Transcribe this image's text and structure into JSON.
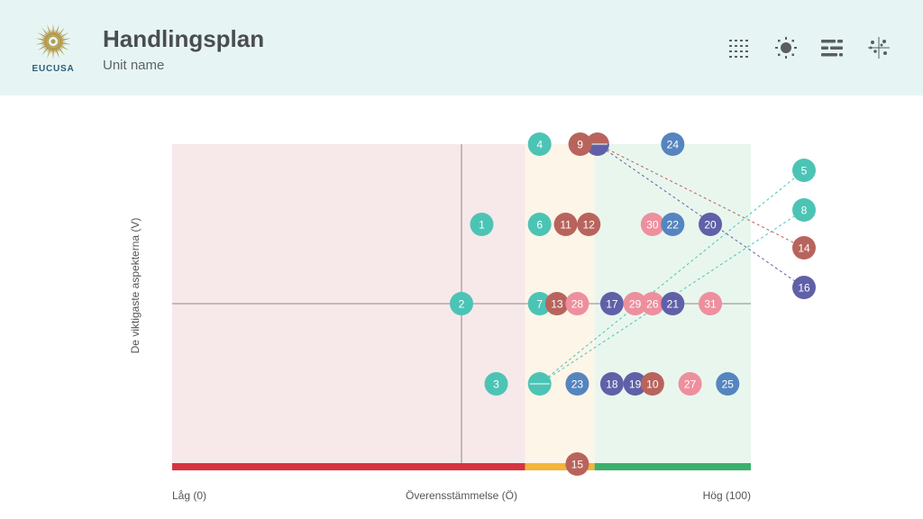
{
  "header": {
    "logo_text": "EUCUSA",
    "title": "Handlingsplan",
    "subtitle": "Unit name",
    "tools": [
      {
        "icon": "dot-grid-icon"
      },
      {
        "icon": "sun-icon"
      },
      {
        "icon": "bars-icon"
      },
      {
        "icon": "scatter-icon"
      }
    ]
  },
  "chart_data": {
    "type": "scatter",
    "title": "",
    "xlabel": "Överensstämmelse (Ö)",
    "x_min_label": "Låg (0)",
    "x_max_label": "Hög (100)",
    "ylabel": "De viktigaste aspekterna (V)",
    "xlim": [
      0,
      100
    ],
    "zones": [
      {
        "from": 0,
        "to": 61,
        "color": "#f7e8ea",
        "bar_color": "#d63441"
      },
      {
        "from": 61,
        "to": 73,
        "color": "#fdf5e8",
        "bar_color": "#f3b53a"
      },
      {
        "from": 73,
        "to": 100,
        "color": "#e9f6ee",
        "bar_color": "#3bb06c"
      }
    ],
    "median_x": 50,
    "rows": 5,
    "colors": {
      "teal": "#4cc4b5",
      "brown": "#b8645c",
      "purple": "#6060a8",
      "pink": "#ee8f9e",
      "blue": "#5585bf"
    },
    "points": [
      {
        "id": "4",
        "x": 63.5,
        "row": 0,
        "color": "teal"
      },
      {
        "id": "9",
        "x": 70.5,
        "row": 0,
        "color": "brown"
      },
      {
        "id": "24",
        "x": 86.5,
        "row": 0,
        "color": "blue"
      },
      {
        "id": "1",
        "x": 53.5,
        "row": 1,
        "color": "teal"
      },
      {
        "id": "6",
        "x": 63.5,
        "row": 1,
        "color": "teal"
      },
      {
        "id": "11",
        "x": 68,
        "row": 1,
        "color": "brown"
      },
      {
        "id": "12",
        "x": 72,
        "row": 1,
        "color": "brown"
      },
      {
        "id": "30",
        "x": 83,
        "row": 1,
        "color": "pink"
      },
      {
        "id": "22",
        "x": 86.5,
        "row": 1,
        "color": "blue"
      },
      {
        "id": "20",
        "x": 93,
        "row": 1,
        "color": "purple"
      },
      {
        "id": "2",
        "x": 50,
        "row": 2,
        "color": "teal"
      },
      {
        "id": "7",
        "x": 63.5,
        "row": 2,
        "color": "teal"
      },
      {
        "id": "13",
        "x": 66.5,
        "row": 2,
        "color": "brown"
      },
      {
        "id": "28",
        "x": 70,
        "row": 2,
        "color": "pink"
      },
      {
        "id": "17",
        "x": 76,
        "row": 2,
        "color": "purple"
      },
      {
        "id": "29",
        "x": 80,
        "row": 2,
        "color": "pink"
      },
      {
        "id": "26",
        "x": 83,
        "row": 2,
        "color": "pink"
      },
      {
        "id": "21",
        "x": 86.5,
        "row": 2,
        "color": "purple"
      },
      {
        "id": "31",
        "x": 93,
        "row": 2,
        "color": "pink"
      },
      {
        "id": "3",
        "x": 56,
        "row": 3,
        "color": "teal"
      },
      {
        "id": "23",
        "x": 70,
        "row": 3,
        "color": "blue"
      },
      {
        "id": "18",
        "x": 76,
        "row": 3,
        "color": "purple"
      },
      {
        "id": "19",
        "x": 80,
        "row": 3,
        "color": "purple"
      },
      {
        "id": "10",
        "x": 83,
        "row": 3,
        "color": "brown"
      },
      {
        "id": "27",
        "x": 89.5,
        "row": 3,
        "color": "pink"
      },
      {
        "id": "25",
        "x": 96,
        "row": 3,
        "color": "blue"
      },
      {
        "id": "15",
        "x": 70,
        "row": 4,
        "color": "brown"
      }
    ],
    "split_markers": [
      {
        "x": 73.5,
        "row": 0,
        "colors": [
          "brown",
          "purple"
        ],
        "links": [
          "14",
          "16"
        ]
      },
      {
        "x": 63.5,
        "row": 3,
        "colors": [
          "teal",
          "teal"
        ],
        "links": [
          "5",
          "8"
        ]
      }
    ],
    "outliers": [
      {
        "id": "5",
        "color": "teal",
        "slot": 0
      },
      {
        "id": "8",
        "color": "teal",
        "slot": 1
      },
      {
        "id": "14",
        "color": "brown",
        "slot": 2
      },
      {
        "id": "16",
        "color": "purple",
        "slot": 3
      }
    ]
  }
}
